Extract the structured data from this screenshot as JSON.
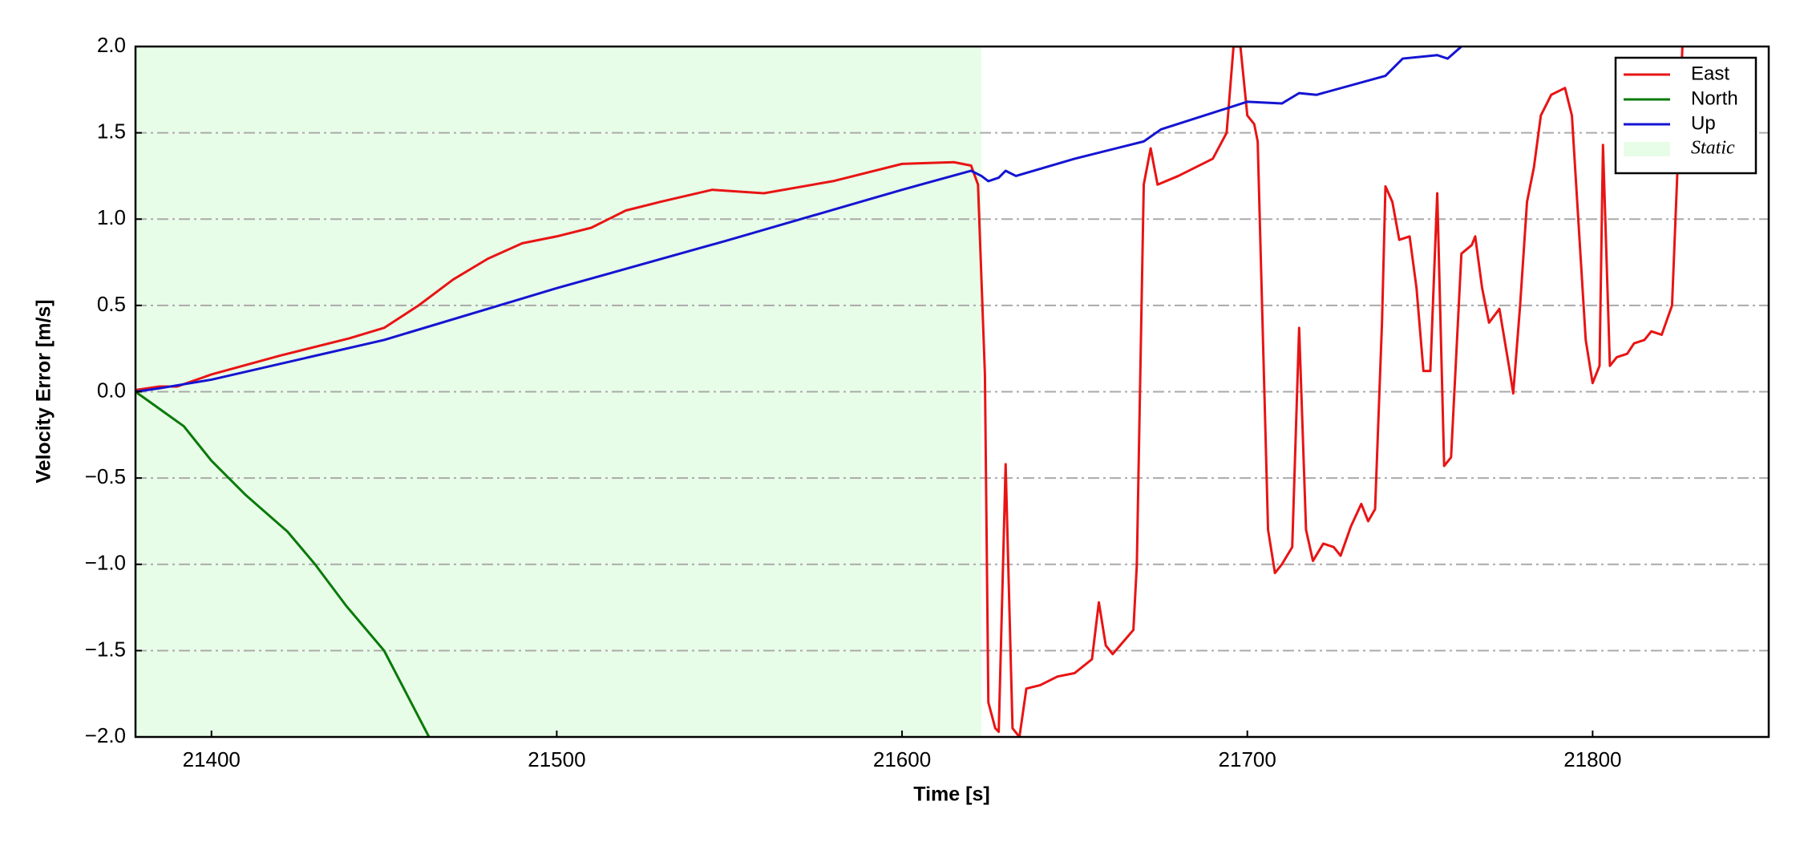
{
  "chart_data": {
    "type": "line",
    "xlabel": "Time [s]",
    "ylabel": "Velocity Error [m/s]",
    "xlim": [
      21378,
      21851
    ],
    "xticks": [
      21400,
      21500,
      21600,
      21700,
      21800
    ],
    "ylim": [
      -2,
      2
    ],
    "yticks": [
      {
        "value": -2,
        "label": "−2.0"
      },
      {
        "value": -1.5,
        "label": "−1.5"
      },
      {
        "value": -1,
        "label": "−1.0"
      },
      {
        "value": -0.5,
        "label": "−0.5"
      },
      {
        "value": 0,
        "label": "0.0"
      },
      {
        "value": 0.5,
        "label": "0.5"
      },
      {
        "value": 1,
        "label": "1.0"
      },
      {
        "value": 1.5,
        "label": "1.5"
      },
      {
        "value": 2,
        "label": "2.0"
      }
    ],
    "grid": true,
    "legend": "upper right",
    "series": [
      {
        "name": "East",
        "color": "#e81414",
        "x": [
          21378,
          21385,
          21390,
          21400,
          21420,
          21440,
          21450,
          21460,
          21470,
          21480,
          21490,
          21500,
          21510,
          21520,
          21530,
          21545,
          21560,
          21580,
          21600,
          21615,
          21620,
          21622,
          21624,
          21625,
          21627,
          21628,
          21630,
          21632,
          21634,
          21636,
          21640,
          21645,
          21650,
          21655,
          21657,
          21659,
          21661,
          21664,
          21667,
          21668,
          21670,
          21672,
          21674,
          21680,
          21690,
          21694,
          21696,
          21698,
          21700,
          21702,
          21703,
          21706,
          21708,
          21710,
          21713,
          21715,
          21717,
          21719,
          21722,
          21725,
          21727,
          21730,
          21733,
          21735,
          21737,
          21739,
          21740,
          21742,
          21744,
          21747,
          21749,
          21751,
          21753,
          21755,
          21757,
          21759,
          21762,
          21765,
          21766,
          21768,
          21770,
          21773,
          21776,
          21777,
          21779,
          21781,
          21783,
          21785,
          21788,
          21792,
          21794,
          21798,
          21800,
          21802,
          21803,
          21805,
          21807,
          21810,
          21812,
          21815,
          21817,
          21820,
          21823,
          21826
        ],
        "values": [
          0.01,
          0.03,
          0.03,
          0.1,
          0.21,
          0.31,
          0.37,
          0.5,
          0.65,
          0.77,
          0.86,
          0.9,
          0.95,
          1.05,
          1.1,
          1.17,
          1.15,
          1.22,
          1.32,
          1.33,
          1.31,
          1.2,
          0.1,
          -1.8,
          -1.95,
          -1.97,
          -0.42,
          -1.95,
          -2.0,
          -1.72,
          -1.7,
          -1.65,
          -1.63,
          -1.55,
          -1.22,
          -1.47,
          -1.52,
          -1.45,
          -1.38,
          -1.0,
          1.2,
          1.41,
          1.2,
          1.25,
          1.35,
          1.5,
          2.0,
          2.0,
          1.6,
          1.55,
          1.45,
          -0.8,
          -1.05,
          -1.0,
          -0.9,
          0.37,
          -0.8,
          -0.98,
          -0.88,
          -0.9,
          -0.95,
          -0.78,
          -0.65,
          -0.75,
          -0.68,
          0.4,
          1.19,
          1.1,
          0.88,
          0.9,
          0.6,
          0.12,
          0.12,
          1.15,
          -0.43,
          -0.38,
          0.8,
          0.85,
          0.9,
          0.6,
          0.4,
          0.48,
          0.12,
          -0.01,
          0.5,
          1.1,
          1.3,
          1.6,
          1.72,
          1.76,
          1.6,
          0.3,
          0.05,
          0.15,
          1.43,
          0.15,
          0.2,
          0.22,
          0.28,
          0.3,
          0.35,
          0.33,
          0.5,
          2.0
        ]
      },
      {
        "name": "North",
        "color": "#0a7a0a",
        "x": [
          21378,
          21385,
          21392,
          21400,
          21410,
          21422,
          21430,
          21439,
          21450,
          21463
        ],
        "values": [
          0,
          -0.1,
          -0.2,
          -0.4,
          -0.6,
          -0.81,
          -1.0,
          -1.24,
          -1.5,
          -2.0
        ]
      },
      {
        "name": "Up",
        "color": "#1414d2",
        "x": [
          21378,
          21385,
          21400,
          21450,
          21500,
          21550,
          21600,
          21620,
          21623,
          21625,
          21628,
          21630,
          21633,
          21650,
          21670,
          21675,
          21700,
          21710,
          21715,
          21720,
          21740,
          21745,
          21755,
          21758,
          21762
        ],
        "values": [
          0,
          0.02,
          0.07,
          0.3,
          0.6,
          0.88,
          1.17,
          1.28,
          1.25,
          1.22,
          1.24,
          1.28,
          1.25,
          1.35,
          1.45,
          1.52,
          1.68,
          1.67,
          1.73,
          1.72,
          1.83,
          1.93,
          1.95,
          1.93,
          2.0
        ]
      }
    ],
    "shaded": {
      "name": "Static",
      "color": "#e8fde8",
      "x": [
        21378,
        21623
      ]
    }
  }
}
